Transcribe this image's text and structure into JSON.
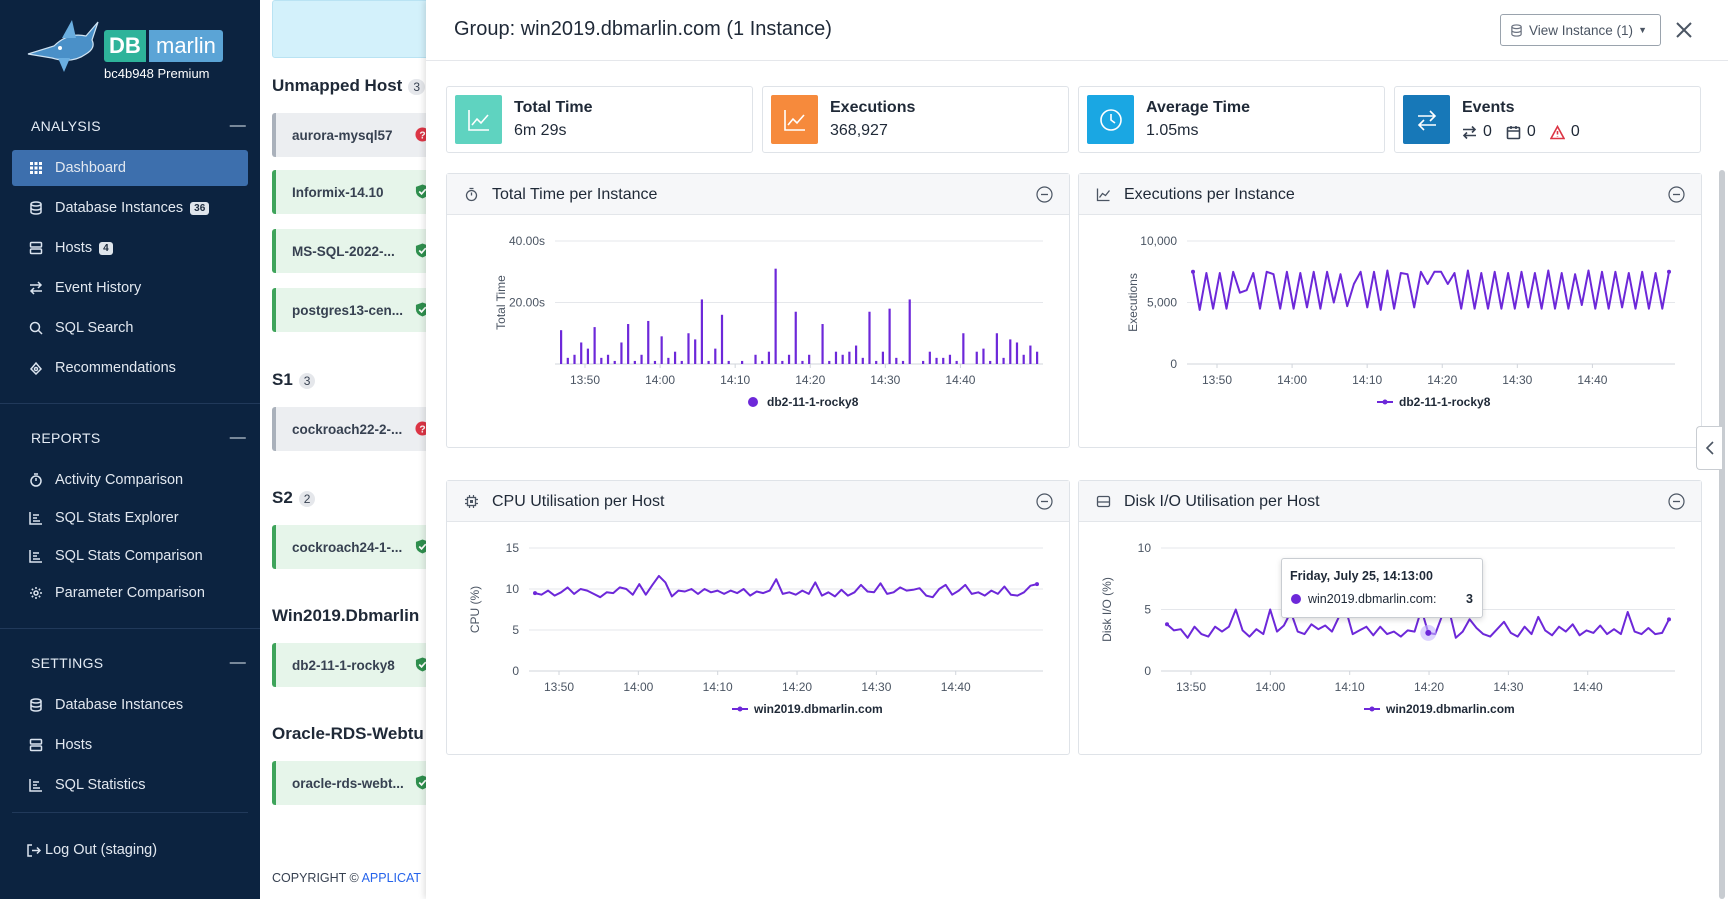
{
  "brand": {
    "db": "DB",
    "marlin": "marlin",
    "subtitle": "bc4b948 Premium"
  },
  "sidebar": {
    "analysis": {
      "heading": "ANALYSIS",
      "items": [
        {
          "label": "Dashboard",
          "icon": "grid-icon",
          "active": true
        },
        {
          "label": "Database Instances",
          "icon": "database-icon",
          "badge": "36"
        },
        {
          "label": "Hosts",
          "icon": "server-icon",
          "badge": "4"
        },
        {
          "label": "Event History",
          "icon": "arrows-icon"
        },
        {
          "label": "SQL Search",
          "icon": "search-icon"
        },
        {
          "label": "Recommendations",
          "icon": "recommendation-icon"
        }
      ]
    },
    "reports": {
      "heading": "REPORTS",
      "items": [
        {
          "label": "Activity Comparison",
          "icon": "stopwatch-icon"
        },
        {
          "label": "SQL Stats Explorer",
          "icon": "bar-list-icon"
        },
        {
          "label": "SQL Stats Comparison",
          "icon": "bar-list-icon"
        },
        {
          "label": "Parameter Comparison",
          "icon": "gear-icon"
        }
      ]
    },
    "settings": {
      "heading": "SETTINGS",
      "items": [
        {
          "label": "Database Instances",
          "icon": "database-icon"
        },
        {
          "label": "Hosts",
          "icon": "server-icon"
        },
        {
          "label": "SQL Statistics",
          "icon": "bar-list-icon"
        }
      ]
    },
    "logout": "Log Out (staging)"
  },
  "groups": [
    {
      "title": "Unmapped Host",
      "count": "3",
      "hosts": [
        {
          "name": "aurora-mysql57",
          "status": "unknown"
        },
        {
          "name": "Informix-14.10",
          "status": "ok"
        },
        {
          "name": "MS-SQL-2022-...",
          "status": "ok"
        },
        {
          "name": "postgres13-cen...",
          "status": "ok"
        }
      ]
    },
    {
      "title": "S1",
      "count": "3",
      "hosts": [
        {
          "name": "cockroach22-2-...",
          "status": "unknown"
        }
      ]
    },
    {
      "title": "S2",
      "count": "2",
      "hosts": [
        {
          "name": "cockroach24-1-...",
          "status": "ok"
        }
      ]
    },
    {
      "title": "Win2019.Dbmarlin",
      "count": "",
      "hosts": [
        {
          "name": "db2-11-1-rocky8",
          "status": "ok"
        }
      ]
    },
    {
      "title": "Oracle-RDS-Webtu",
      "count": "",
      "hosts": [
        {
          "name": "oracle-rds-webt...",
          "status": "ok"
        }
      ]
    }
  ],
  "footer": {
    "copyright": "COPYRIGHT © ",
    "link": "APPLICAT"
  },
  "drawer": {
    "title": "Group: win2019.dbmarlin.com (1 Instance)",
    "view_button": "View Instance (1)",
    "stats": [
      {
        "label": "Total Time",
        "value": "6m 29s",
        "color": "#5fd3c0",
        "icon": "line-chart-icon"
      },
      {
        "label": "Executions",
        "value": "368,927",
        "color": "#f68a3c",
        "icon": "line-chart-icon"
      },
      {
        "label": "Average Time",
        "value": "1.05ms",
        "color": "#1aa7e3",
        "icon": "clock-icon"
      },
      {
        "label": "Events",
        "color": "#1778b8",
        "icon": "swap-icon",
        "changes": "0",
        "calendar": "0",
        "alerts": "0"
      }
    ],
    "panels": {
      "total_time": {
        "title": "Total Time per Instance"
      },
      "executions": {
        "title": "Executions per Instance"
      },
      "cpu": {
        "title": "CPU Utilisation per Host"
      },
      "disk": {
        "title": "Disk I/O Utilisation per Host"
      }
    },
    "tooltip": {
      "title": "Friday, July 25, 14:13:00",
      "series": "win2019.dbmarlin.com:",
      "value": "3"
    }
  },
  "chart_data": [
    {
      "id": "total_time",
      "type": "bar",
      "ylabel": "Total Time",
      "yticks": [
        "40.00s",
        "20.00s"
      ],
      "ylim": [
        0,
        40
      ],
      "xticks": [
        "13:50",
        "14:00",
        "14:10",
        "14:20",
        "14:30",
        "14:40"
      ],
      "color": "#6d28d9",
      "series": [
        {
          "name": "db2-11-1-rocky8",
          "values": [
            11,
            2,
            3,
            7,
            5,
            12,
            2,
            3,
            1,
            7,
            13,
            1,
            3,
            14,
            1,
            9,
            2,
            4,
            1,
            10,
            8,
            21,
            1,
            5,
            16,
            1,
            0,
            1,
            0,
            3,
            1,
            4,
            31,
            1,
            3,
            17,
            1,
            3,
            0,
            13,
            1,
            4,
            3,
            4,
            6,
            2,
            17,
            1,
            4,
            18,
            2,
            1,
            21,
            0,
            1,
            4,
            2,
            2,
            3,
            1,
            10,
            0,
            4,
            5,
            1,
            10,
            2,
            8,
            7,
            3,
            6,
            4
          ]
        }
      ]
    },
    {
      "id": "executions",
      "type": "line",
      "ylabel": "Executions",
      "yticks": [
        "10,000",
        "5,000",
        "0"
      ],
      "ylim": [
        0,
        10000
      ],
      "xticks": [
        "13:50",
        "14:00",
        "14:10",
        "14:20",
        "14:30",
        "14:40"
      ],
      "color": "#6d28d9",
      "series": [
        {
          "name": "db2-11-1-rocky8",
          "values": [
            7500,
            4400,
            7400,
            4500,
            7400,
            4500,
            7500,
            5800,
            6000,
            7400,
            4500,
            7500,
            7300,
            4500,
            7500,
            4500,
            7400,
            4600,
            7500,
            4500,
            7500,
            5000,
            7300,
            4700,
            6500,
            7500,
            4600,
            7500,
            4400,
            7600,
            4500,
            7400,
            7300,
            4600,
            7500,
            6500,
            7500,
            7500,
            6500,
            7400,
            4500,
            7600,
            4500,
            7400,
            4500,
            7500,
            4500,
            7400,
            4500,
            7500,
            4600,
            7400,
            4500,
            7600,
            4500,
            7400,
            4500,
            7300,
            4800,
            7600,
            4500,
            7500,
            4500,
            7500,
            4600,
            7400,
            4500,
            7500,
            4500,
            7400,
            4500,
            7500
          ]
        }
      ]
    },
    {
      "id": "cpu",
      "type": "line",
      "ylabel": "CPU (%)",
      "yticks": [
        "15",
        "10",
        "5",
        "0"
      ],
      "ylim": [
        0,
        15
      ],
      "xticks": [
        "13:50",
        "14:00",
        "14:10",
        "14:20",
        "14:30",
        "14:40"
      ],
      "color": "#6d28d9",
      "series": [
        {
          "name": "win2019.dbmarlin.com",
          "values": [
            9.5,
            9.3,
            9.8,
            9.2,
            9.6,
            10.2,
            9.4,
            10.0,
            9.8,
            9.4,
            9.0,
            9.6,
            9.5,
            10.2,
            10.0,
            9.3,
            10.6,
            9.3,
            10.5,
            11.6,
            10.8,
            9.1,
            9.8,
            9.7,
            10.0,
            9.4,
            10.0,
            9.6,
            9.8,
            9.4,
            9.8,
            9.5,
            10.0,
            9.2,
            9.7,
            9.5,
            9.8,
            11.2,
            9.4,
            9.6,
            9.3,
            9.8,
            9.4,
            10.8,
            9.2,
            9.6,
            9.1,
            9.9,
            9.2,
            9.6,
            10.5,
            9.7,
            9.6,
            10.7,
            9.4,
            9.6,
            10.2,
            9.8,
            9.9,
            10.1,
            9.2,
            9.0,
            10.0,
            10.5,
            9.3,
            9.8,
            10.5,
            9.4,
            9.6,
            9.2,
            9.8,
            9.4,
            10.3,
            9.3,
            9.2,
            9.6,
            10.4,
            10.6
          ]
        }
      ]
    },
    {
      "id": "disk",
      "type": "line",
      "ylabel": "Disk I/O (%)",
      "yticks": [
        "10",
        "5",
        "0"
      ],
      "ylim": [
        0,
        10
      ],
      "xticks": [
        "13:50",
        "14:00",
        "14:10",
        "14:20",
        "14:30",
        "14:40"
      ],
      "color": "#6d28d9",
      "series": [
        {
          "name": "win2019.dbmarlin.com",
          "values": [
            3.8,
            3.3,
            3.4,
            2.7,
            3.6,
            3.0,
            2.8,
            3.6,
            3.2,
            3.6,
            5.0,
            3.3,
            2.8,
            3.4,
            3.0,
            5.0,
            3.2,
            3.7,
            4.8,
            3.2,
            3.0,
            3.8,
            3.4,
            3.7,
            3.2,
            4.4,
            5.0,
            3.0,
            3.3,
            3.6,
            2.9,
            3.6,
            3.0,
            3.2,
            2.8,
            3.3,
            3.2,
            5.0,
            3.1,
            3.0,
            4.5,
            5.0,
            2.7,
            3.2,
            4.2,
            3.5,
            3.0,
            2.8,
            3.4,
            4.0,
            3.1,
            2.8,
            3.6,
            3.0,
            4.4,
            3.3,
            2.9,
            3.6,
            3.2,
            3.8,
            2.9,
            3.3,
            3.1,
            3.7,
            3.0,
            3.4,
            3.0,
            4.8,
            3.2,
            3.0,
            3.5,
            3.0,
            3.1,
            4.2
          ]
        }
      ]
    }
  ]
}
